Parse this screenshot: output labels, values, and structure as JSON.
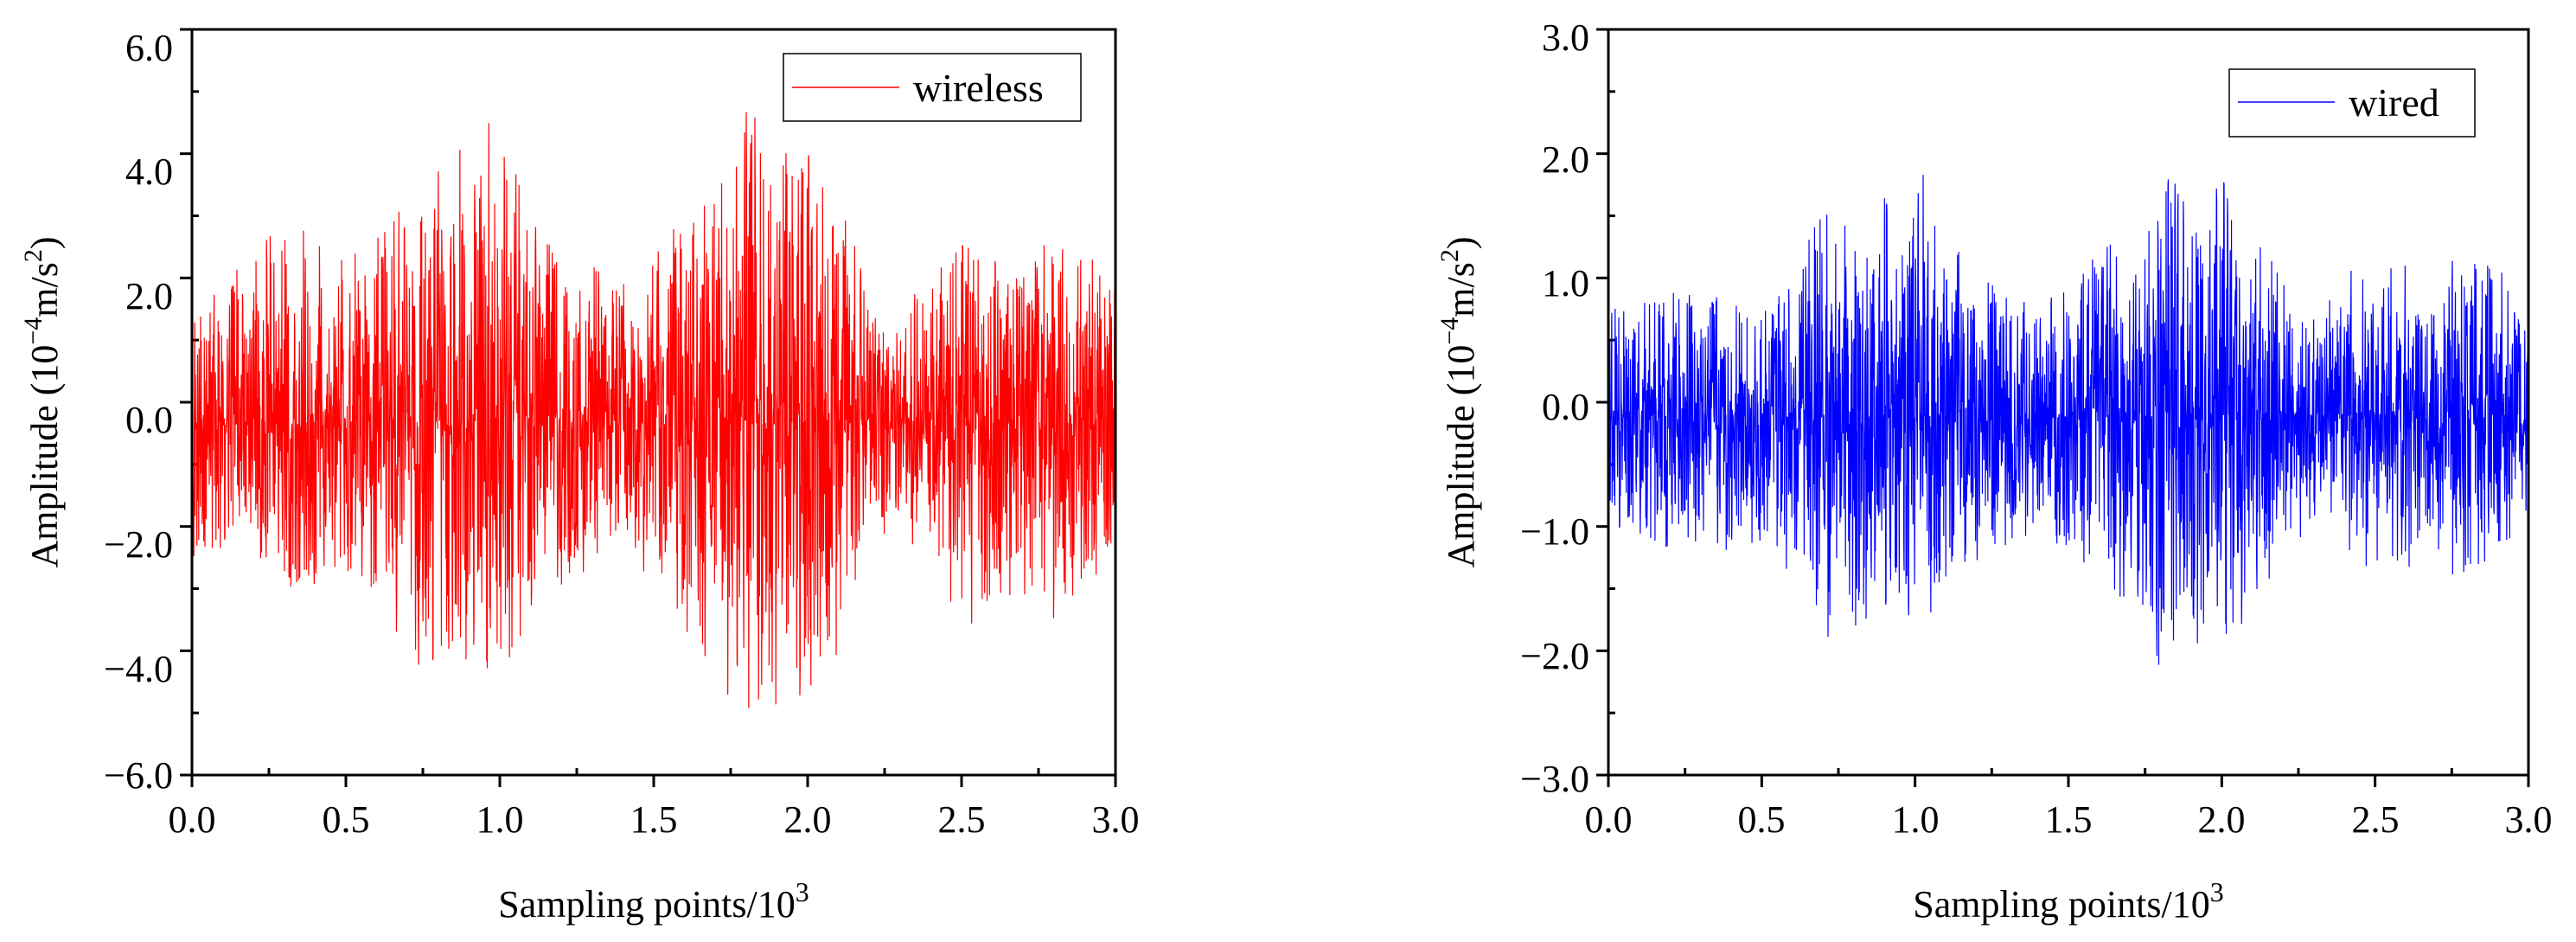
{
  "chart_data": [
    {
      "type": "line",
      "series": [
        {
          "name": "wireless",
          "color": "#ff0000",
          "envelope_x": [
            0,
            0.1,
            0.2,
            0.3,
            0.4,
            0.5,
            0.6,
            0.7,
            0.8,
            0.9,
            1.0,
            1.1,
            1.2,
            1.3,
            1.4,
            1.5,
            1.6,
            1.7,
            1.8,
            1.9,
            2.0,
            2.1,
            2.2,
            2.3,
            2.4,
            2.5,
            2.6,
            2.7,
            2.8,
            2.9,
            3.0
          ],
          "envelope_max": [
            1.6,
            2.0,
            2.3,
            3.1,
            2.6,
            2.4,
            3.0,
            3.2,
            3.8,
            4.6,
            4.8,
            3.3,
            2.8,
            2.2,
            1.9,
            2.5,
            3.2,
            3.5,
            4.7,
            4.4,
            4.2,
            3.3,
            1.9,
            1.3,
            2.0,
            2.6,
            2.4,
            2.2,
            2.5,
            2.6,
            2.4
          ],
          "envelope_min": [
            -2.6,
            -2.4,
            -2.8,
            -2.9,
            -2.9,
            -2.6,
            -3.4,
            -4.3,
            -4.6,
            -4.4,
            -4.7,
            -3.5,
            -3.0,
            -2.6,
            -2.4,
            -2.9,
            -3.8,
            -4.3,
            -5.3,
            -4.9,
            -5.1,
            -4.4,
            -2.6,
            -2.0,
            -2.9,
            -3.8,
            -3.4,
            -3.2,
            -3.6,
            -3.0,
            -2.4
          ],
          "center_offset": -0.3,
          "n_points": 3000
        }
      ],
      "legend": "wireless",
      "legend_position": "top-right",
      "xlabel_text": "Sampling points/10",
      "xlabel_sup": "3",
      "ylabel_pre": "Amplitude (10",
      "ylabel_sup1": "−4",
      "ylabel_mid": "m/s",
      "ylabel_sup2": "2",
      "ylabel_post": ")",
      "xlim": [
        0,
        3
      ],
      "ylim": [
        -6,
        6
      ],
      "xticks": [
        0,
        0.5,
        1.0,
        1.5,
        2.0,
        2.5,
        3.0
      ],
      "xtick_labels": [
        "0.0",
        "0.5",
        "1.0",
        "1.5",
        "2.0",
        "2.5",
        "3.0"
      ],
      "yticks": [
        -6,
        -4,
        -2,
        0,
        2,
        4,
        6
      ],
      "ytick_labels": [
        "−6.0",
        "−4.0",
        "−2.0",
        "0.0",
        "2.0",
        "4.0",
        "6.0"
      ],
      "grid": false
    },
    {
      "type": "line",
      "series": [
        {
          "name": "wired",
          "color": "#0000ff",
          "envelope_x": [
            0,
            0.1,
            0.2,
            0.3,
            0.4,
            0.5,
            0.6,
            0.7,
            0.8,
            0.9,
            1.0,
            1.1,
            1.2,
            1.3,
            1.4,
            1.5,
            1.6,
            1.7,
            1.8,
            1.9,
            2.0,
            2.1,
            2.2,
            2.3,
            2.4,
            2.5,
            2.6,
            2.7,
            2.8,
            2.9,
            3.0
          ],
          "envelope_max": [
            0.8,
            0.8,
            0.9,
            0.9,
            0.8,
            0.9,
            1.1,
            1.6,
            1.3,
            1.7,
            2.0,
            1.4,
            1.1,
            0.9,
            0.9,
            1.0,
            1.2,
            1.4,
            1.9,
            1.8,
            1.8,
            1.4,
            1.0,
            0.6,
            0.8,
            0.9,
            0.7,
            0.8,
            1.2,
            1.1,
            1.0
          ],
          "envelope_min": [
            -1.0,
            -1.1,
            -1.3,
            -1.2,
            -1.2,
            -1.3,
            -1.5,
            -1.9,
            -1.9,
            -1.8,
            -1.9,
            -1.6,
            -1.4,
            -1.2,
            -1.1,
            -1.2,
            -1.6,
            -1.8,
            -2.2,
            -1.9,
            -2.1,
            -1.8,
            -1.2,
            -1.0,
            -1.3,
            -1.6,
            -1.4,
            -1.3,
            -1.5,
            -1.2,
            -1.0
          ],
          "center_offset": -0.1,
          "n_points": 3000
        }
      ],
      "legend": "wired",
      "legend_position": "top-right",
      "xlabel_text": "Sampling points/10",
      "xlabel_sup": "3",
      "ylabel_pre": "Amplitude (10",
      "ylabel_sup1": "−4",
      "ylabel_mid": "m/s",
      "ylabel_sup2": "2",
      "ylabel_post": ")",
      "xlim": [
        0,
        3
      ],
      "ylim": [
        -3,
        3
      ],
      "xticks": [
        0,
        0.5,
        1.0,
        1.5,
        2.0,
        2.5,
        3.0
      ],
      "xtick_labels": [
        "0.0",
        "0.5",
        "1.0",
        "1.5",
        "2.0",
        "2.5",
        "3.0"
      ],
      "yticks": [
        -3,
        -2,
        -1,
        0,
        1,
        2,
        3
      ],
      "ytick_labels": [
        "−3.0",
        "−2.0",
        "−1.0",
        "0.0",
        "1.0",
        "2.0",
        "3.0"
      ],
      "grid": false
    }
  ]
}
